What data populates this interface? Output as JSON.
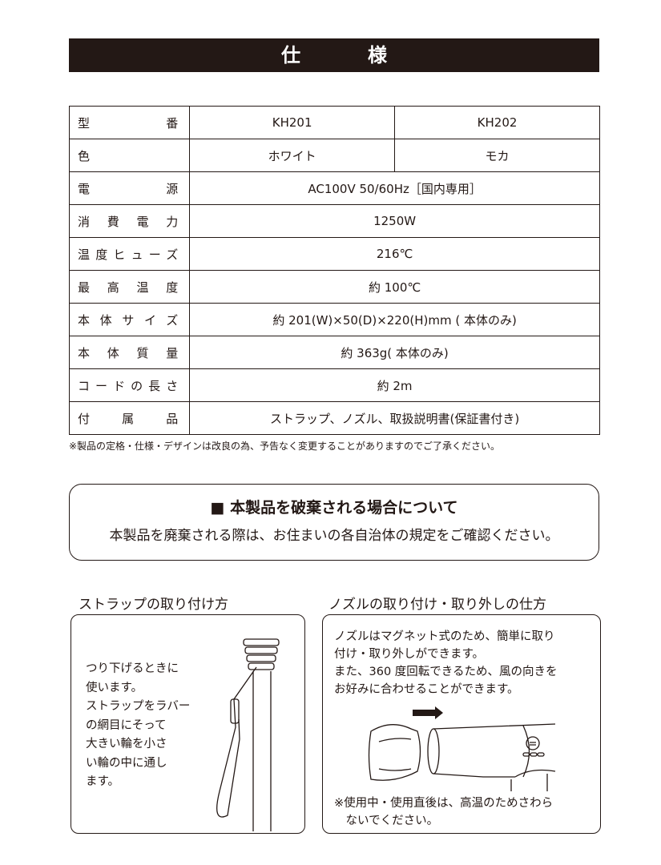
{
  "title": "仕　様",
  "spec": {
    "rows": [
      {
        "label": "型番",
        "values": [
          "KH201",
          "KH202"
        ]
      },
      {
        "label": "色",
        "values": [
          "ホワイト",
          "モカ"
        ]
      },
      {
        "label": "電源",
        "values": [
          "AC100V  50/60Hz［国内専用］"
        ]
      },
      {
        "label": "消費電力",
        "values": [
          "1250W"
        ]
      },
      {
        "label": "温度ヒューズ",
        "values": [
          "216℃"
        ]
      },
      {
        "label": "最高温度",
        "values": [
          "約 100℃"
        ]
      },
      {
        "label": "本体サイズ",
        "values": [
          "約 201(W)×50(D)×220(H)mm ( 本体のみ)"
        ]
      },
      {
        "label": "本体質量",
        "values": [
          "約 363g( 本体のみ)"
        ]
      },
      {
        "label": "コードの長さ",
        "values": [
          "約 2m"
        ]
      },
      {
        "label": "付属品",
        "values": [
          "ストラップ、ノズル、取扱説明書(保証書付き)"
        ]
      }
    ],
    "note": "※製品の定格・仕様・デザインは改良の為、予告なく変更することがありますのでご了承ください。"
  },
  "disposal": {
    "heading": "■ 本製品を破棄される場合について",
    "body": "本製品を廃棄される際は、お住まいの各自治体の規定をご確認ください。"
  },
  "strap": {
    "heading": "ストラップの取り付け方",
    "lines": [
      "つり下げるときに",
      "使います。",
      "ストラップをラバー",
      "の網目にそって",
      "大きい輪を小さ",
      "い輪の中に通し",
      "ます。"
    ]
  },
  "nozzle": {
    "heading": "ノズルの取り付け・取り外しの仕方",
    "lines": [
      "ノズルはマグネット式のため、簡単に取り",
      "付け・取り外しができます。",
      "また、360 度回転できるため、風の向きを",
      "お好みに合わせることができます。"
    ],
    "caution": [
      "※使用中・使用直後は、高温のためさわら",
      "　ないでください。"
    ]
  }
}
